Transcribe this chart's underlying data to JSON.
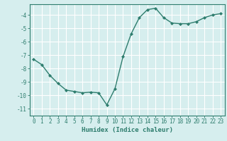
{
  "x": [
    0,
    1,
    2,
    3,
    4,
    5,
    6,
    7,
    8,
    9,
    10,
    11,
    12,
    13,
    14,
    15,
    16,
    17,
    18,
    19,
    20,
    21,
    22,
    23
  ],
  "y": [
    -7.3,
    -7.7,
    -8.5,
    -9.1,
    -9.6,
    -9.7,
    -9.8,
    -9.75,
    -9.8,
    -10.7,
    -9.5,
    -7.1,
    -5.4,
    -4.2,
    -3.6,
    -3.5,
    -4.2,
    -4.6,
    -4.65,
    -4.65,
    -4.5,
    -4.2,
    -4.0,
    -3.9
  ],
  "line_color": "#2e7d6e",
  "marker": "D",
  "marker_size": 2,
  "bg_color": "#d6eeee",
  "grid_color": "#ffffff",
  "xlabel": "Humidex (Indice chaleur)",
  "ylim": [
    -11.5,
    -3.2
  ],
  "xlim": [
    -0.5,
    23.5
  ],
  "yticks": [
    -11,
    -10,
    -9,
    -8,
    -7,
    -6,
    -5,
    -4
  ],
  "xticks": [
    0,
    1,
    2,
    3,
    4,
    5,
    6,
    7,
    8,
    9,
    10,
    11,
    12,
    13,
    14,
    15,
    16,
    17,
    18,
    19,
    20,
    21,
    22,
    23
  ],
  "tick_color": "#2e7d6e",
  "label_fontsize": 6.5,
  "tick_fontsize": 5.5
}
